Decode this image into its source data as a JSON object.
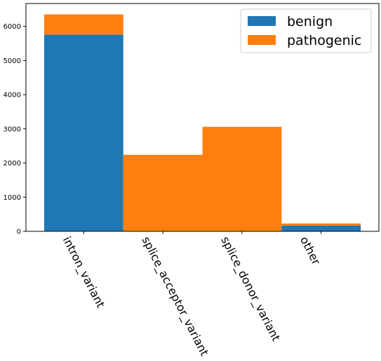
{
  "chart_data": {
    "type": "bar",
    "stacked": true,
    "categories": [
      "intron_variant",
      "splice_acceptor_variant",
      "splice_donor_variant",
      "other"
    ],
    "series": [
      {
        "name": "benign",
        "color": "#1f77b4",
        "values": [
          5760,
          0,
          0,
          170
        ]
      },
      {
        "name": "pathogenic",
        "color": "#ff7f0e",
        "values": [
          590,
          2240,
          3060,
          60
        ]
      }
    ],
    "yticks": [
      0,
      1000,
      2000,
      3000,
      4000,
      5000,
      6000
    ],
    "ylim": [
      0,
      6670
    ],
    "legend_position": "top-right",
    "grid": false,
    "category_label_rotation": 63
  }
}
